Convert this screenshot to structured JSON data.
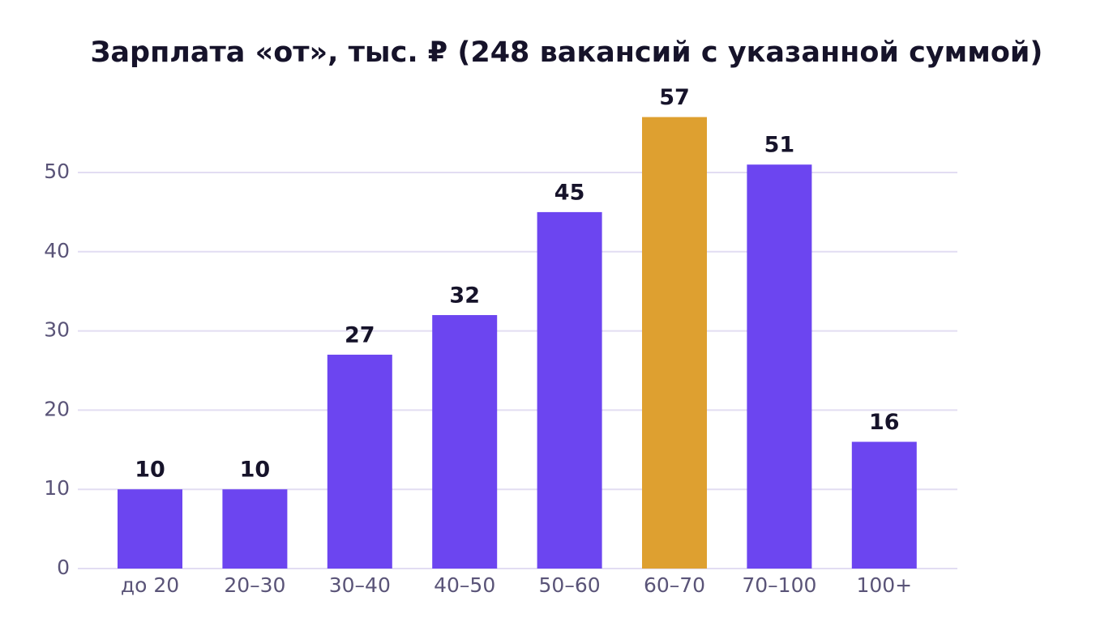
{
  "chart_data": {
    "type": "bar",
    "title": "Зарплата «от», тыс. ₽ (248 вакансий с указанной суммой)",
    "categories": [
      "до 20",
      "20–30",
      "30–40",
      "40–50",
      "50–60",
      "60–70",
      "70–100",
      "100+"
    ],
    "values": [
      10,
      10,
      27,
      32,
      45,
      57,
      51,
      16
    ],
    "colors": [
      "#6c45f0",
      "#6c45f0",
      "#6c45f0",
      "#6c45f0",
      "#6c45f0",
      "#dea030",
      "#6c45f0",
      "#6c45f0"
    ],
    "ylim": [
      0,
      60
    ],
    "yticks": [
      0,
      10,
      20,
      30,
      40,
      50
    ],
    "grid": true
  }
}
